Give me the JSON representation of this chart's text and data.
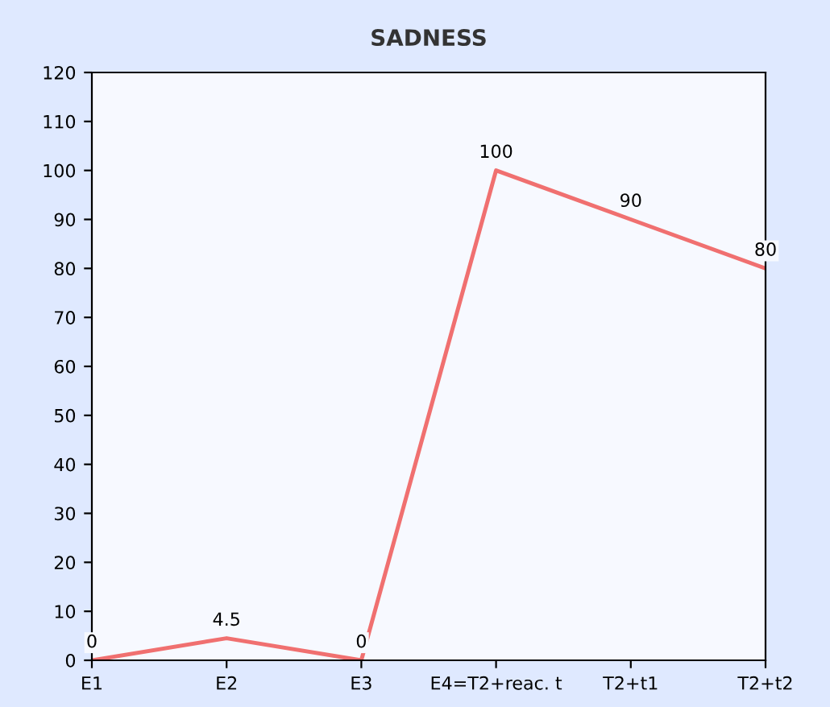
{
  "chart_data": {
    "type": "line",
    "title": "SADNESS",
    "categories": [
      "E1",
      "E2",
      "E3",
      "E4=T2+reac. t",
      "T2+t1",
      "T2+t2"
    ],
    "series": [
      {
        "color": "#f07070",
        "values": [
          0,
          4.5,
          0,
          100,
          90,
          80
        ]
      }
    ],
    "ylim": [
      0,
      120
    ],
    "yticks": [
      0,
      10,
      20,
      30,
      40,
      50,
      60,
      70,
      80,
      90,
      100,
      110,
      120
    ],
    "data_labels": true,
    "grid": false,
    "marker": "none",
    "line_style": "solid"
  }
}
